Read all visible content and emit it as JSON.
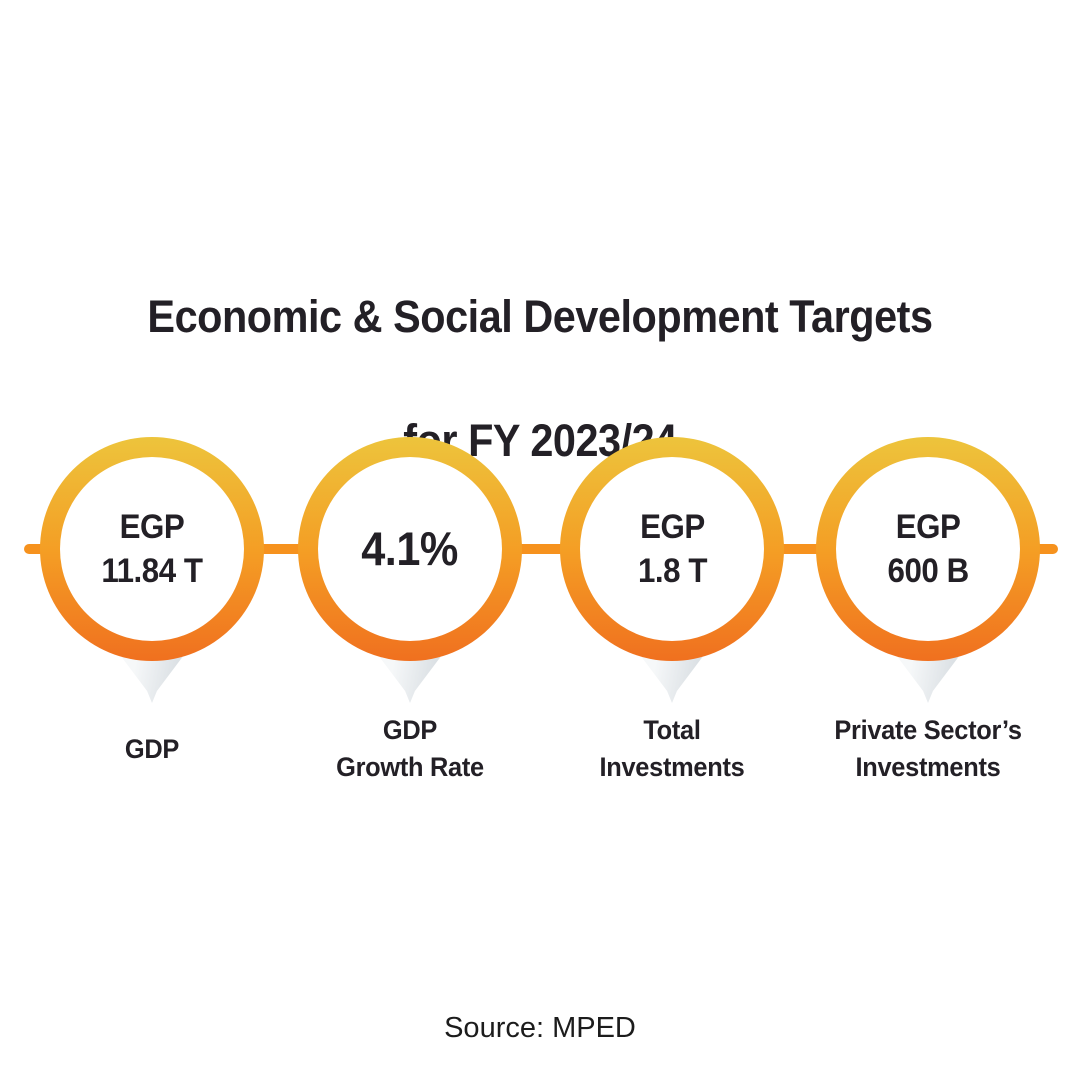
{
  "title": {
    "line1": "Economic & Social Development Targets",
    "line2": "for FY 2023/24"
  },
  "badges": [
    {
      "value_line1": "EGP",
      "value_line2": "11.84 T",
      "label_line1": "GDP",
      "label_line2": ""
    },
    {
      "value_line1": "4.1%",
      "value_line2": "",
      "label_line1": "GDP",
      "label_line2": "Growth Rate"
    },
    {
      "value_line1": "EGP",
      "value_line2": "1.8 T",
      "label_line1": "Total",
      "label_line2": "Investments"
    },
    {
      "value_line1": "EGP",
      "value_line2": "600 B",
      "label_line1": "Private Sector’s",
      "label_line2": "Investments"
    }
  ],
  "source": "Source: MPED",
  "colors": {
    "ring_top": "#EDC43C",
    "ring_mid": "#F49D24",
    "ring_bottom": "#F0701F",
    "connector": "#F6921E",
    "text_dark": "#232026",
    "tail_light": "#F6F8F9",
    "tail_dark": "#DCE1E5",
    "bg": "#FFFFFF"
  }
}
